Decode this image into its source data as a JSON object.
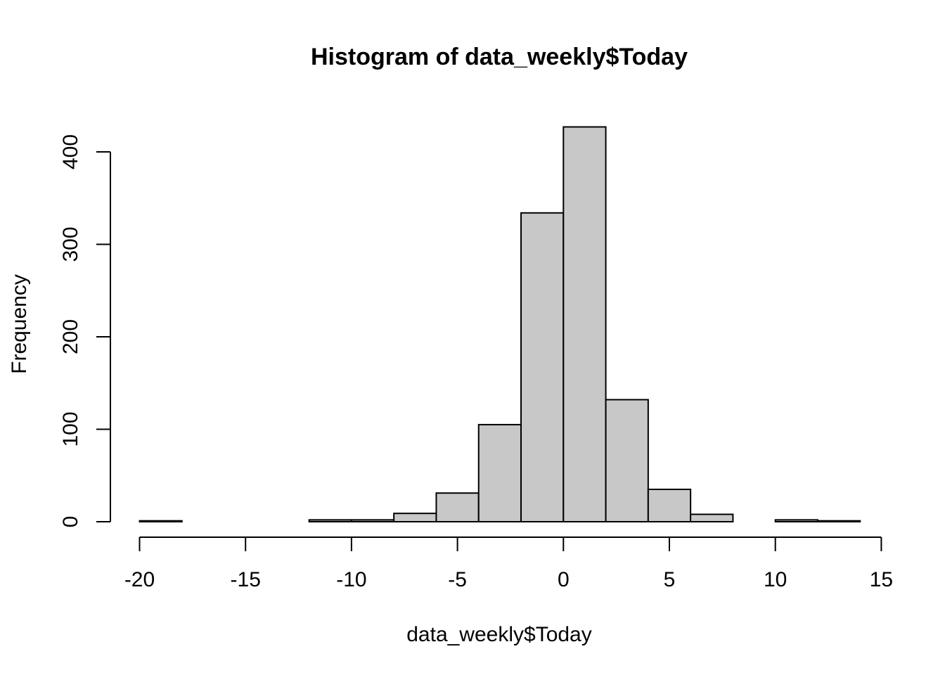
{
  "chart_data": {
    "type": "bar",
    "subtype": "histogram",
    "title": "Histogram of data_weekly$Today",
    "xlabel": "data_weekly$Today",
    "ylabel": "Frequency",
    "bins": [
      {
        "x0": -20,
        "x1": -18,
        "count": 1
      },
      {
        "x0": -18,
        "x1": -16,
        "count": 0
      },
      {
        "x0": -16,
        "x1": -14,
        "count": 0
      },
      {
        "x0": -14,
        "x1": -12,
        "count": 0
      },
      {
        "x0": -12,
        "x1": -10,
        "count": 2
      },
      {
        "x0": -10,
        "x1": -8,
        "count": 2
      },
      {
        "x0": -8,
        "x1": -6,
        "count": 9
      },
      {
        "x0": -6,
        "x1": -4,
        "count": 31
      },
      {
        "x0": -4,
        "x1": -2,
        "count": 105
      },
      {
        "x0": -2,
        "x1": 0,
        "count": 334
      },
      {
        "x0": 0,
        "x1": 2,
        "count": 427
      },
      {
        "x0": 2,
        "x1": 4,
        "count": 132
      },
      {
        "x0": 4,
        "x1": 6,
        "count": 35
      },
      {
        "x0": 6,
        "x1": 8,
        "count": 8
      },
      {
        "x0": 8,
        "x1": 10,
        "count": 0
      },
      {
        "x0": 10,
        "x1": 12,
        "count": 2
      },
      {
        "x0": 12,
        "x1": 14,
        "count": 1
      }
    ],
    "xticks": [
      -20,
      -15,
      -10,
      -5,
      0,
      5,
      10,
      15
    ],
    "xtick_labels": [
      "-20",
      "-15",
      "-10",
      "-5",
      "0",
      "5",
      "10",
      "15"
    ],
    "yticks": [
      0,
      100,
      200,
      300,
      400
    ],
    "ytick_labels": [
      "0",
      "100",
      "200",
      "300",
      "400"
    ],
    "xlim": [
      -20,
      15
    ],
    "ylim": [
      0,
      400
    ],
    "bar_color": "#c8c8c8",
    "edge_color": "#000000",
    "grid": false,
    "legend": false
  }
}
